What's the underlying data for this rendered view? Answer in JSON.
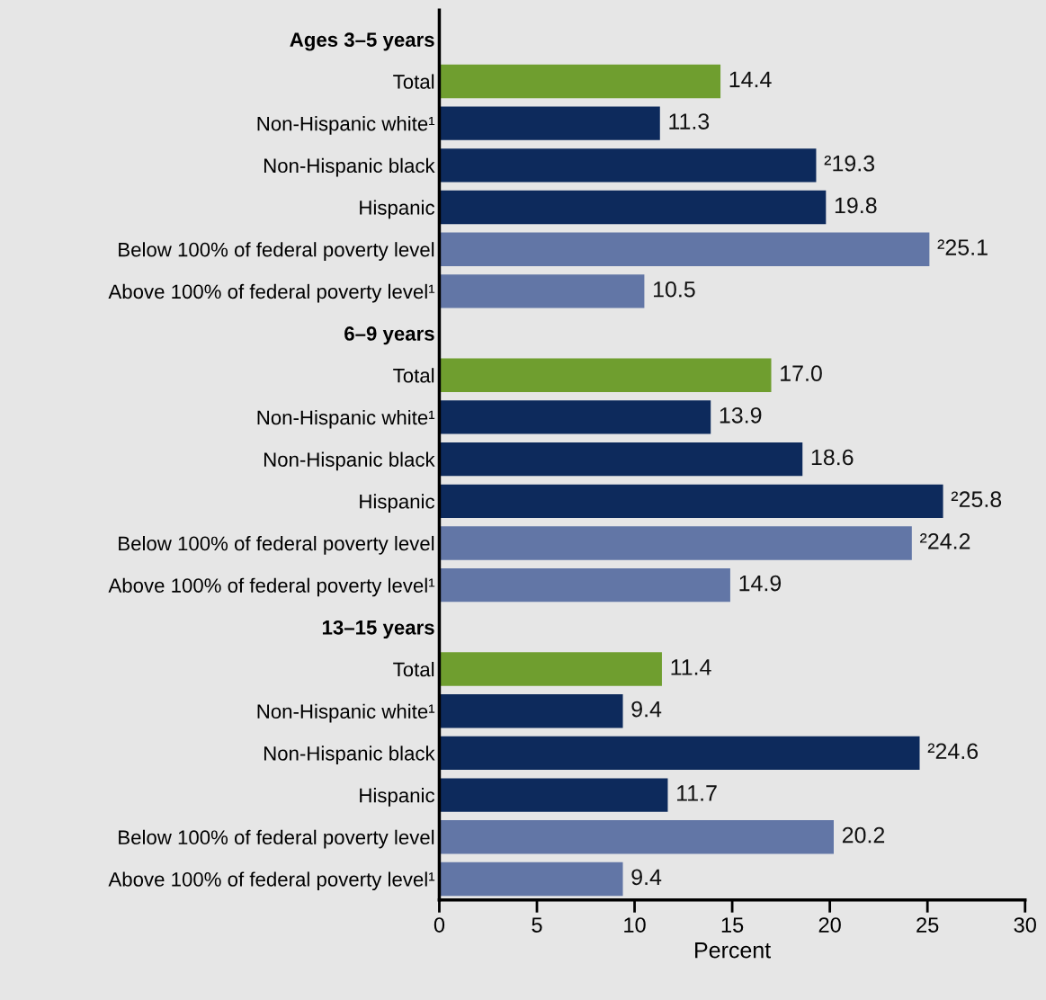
{
  "chart_data": {
    "type": "bar",
    "orientation": "horizontal",
    "xlabel": "Percent",
    "categories": [
      "Ages 3–5 years",
      "Total",
      "Non-Hispanic white¹",
      "Non-Hispanic black",
      "Hispanic",
      "Below 100% of federal poverty level",
      "Above 100% of federal poverty level¹",
      "6–9 years",
      "Total",
      "Non-Hispanic white¹",
      "Non-Hispanic black",
      "Hispanic",
      "Below 100% of federal poverty level",
      "Above 100% of federal poverty level¹",
      "13–15 years",
      "Total",
      "Non-Hispanic white¹",
      "Non-Hispanic black",
      "Hispanic",
      "Below 100% of federal poverty level",
      "Above 100% of federal poverty level¹"
    ],
    "values": [
      null,
      14.4,
      11.3,
      19.3,
      19.8,
      25.1,
      10.5,
      null,
      17.0,
      13.9,
      18.6,
      25.8,
      24.2,
      14.9,
      null,
      11.4,
      9.4,
      24.6,
      11.7,
      20.2,
      9.4
    ],
    "value_labels": [
      null,
      "14.4",
      "11.3",
      "²19.3",
      "19.8",
      "²25.1",
      "10.5",
      null,
      "17.0",
      "13.9",
      "18.6",
      "²25.8",
      "²24.2",
      "14.9",
      null,
      "11.4",
      "9.4",
      "²24.6",
      "11.7",
      "20.2",
      "9.4"
    ],
    "colors": [
      null,
      "#6f9e2f",
      "#0d2a5c",
      "#0d2a5c",
      "#0d2a5c",
      "#6276a6",
      "#6276a6",
      null,
      "#6f9e2f",
      "#0d2a5c",
      "#0d2a5c",
      "#0d2a5c",
      "#6276a6",
      "#6276a6",
      null,
      "#6f9e2f",
      "#0d2a5c",
      "#0d2a5c",
      "#0d2a5c",
      "#6276a6",
      "#6276a6"
    ],
    "xlim": [
      0,
      30
    ],
    "xticks": [
      0,
      5,
      10,
      15,
      20,
      25,
      30
    ],
    "grid": false
  }
}
